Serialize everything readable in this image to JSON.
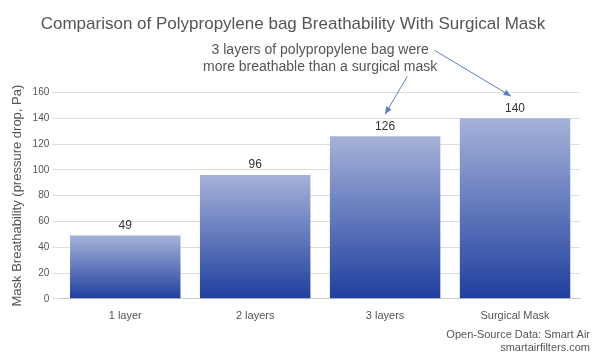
{
  "chart_data": {
    "type": "bar",
    "title": "Comparison of Polypropylene bag Breathability With Surgical Mask",
    "y_label": "Mask Breathability (pressure drop, Pa)",
    "categories": [
      "1 layer",
      "2 layers",
      "3 layers",
      "Surgical Mask"
    ],
    "values": [
      49,
      96,
      126,
      140
    ],
    "color": "#1f3f9e",
    "ylim": [
      0,
      160
    ],
    "yticks": [
      0,
      20,
      40,
      60,
      80,
      100,
      120,
      140,
      160
    ],
    "grid": true,
    "data_labels": true,
    "annotation": [
      "3 layers of polypropylene bag were",
      "more breathable than a surgical mask"
    ],
    "source": [
      "Open-Source Data: Smart Air",
      "smartairfilters.com"
    ]
  }
}
